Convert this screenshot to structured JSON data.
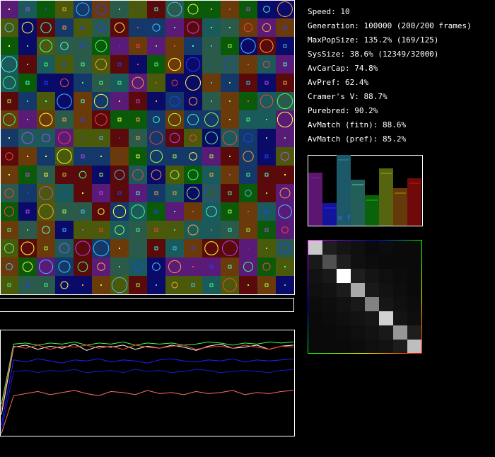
{
  "stats": [
    "Speed: 10",
    "Generation: 100000 (200/200 frames)",
    "MaxPopSize: 135.2% (169/125)",
    "SysSize: 38.6% (12349/32000)",
    "AvCarCap: 74.8%",
    "AvPref: 62.4%",
    "Cramer's V: 88.7%",
    "Purebred: 90.2%",
    "AvMatch (fitn): 88.6%",
    "AvMatch (pref): 85.2%"
  ],
  "bars": {
    "labels": [
      "m f"
    ],
    "values": [
      75,
      32,
      100,
      65,
      43,
      81,
      53,
      67
    ],
    "colors": [
      "#5c1670",
      "#14149a",
      "#1c5868",
      "#245e58",
      "#0a620a",
      "#566410",
      "#643a0a",
      "#700a0a"
    ],
    "tops": [
      "#7a2a90",
      "#2a2aff",
      "#2a90a0",
      "#50d0b0",
      "#10c010",
      "#90b010",
      "#d08010",
      "#d01010"
    ]
  },
  "matrix": [
    [
      200,
      30,
      20,
      15,
      10,
      12,
      10,
      10
    ],
    [
      25,
      80,
      30,
      15,
      12,
      10,
      10,
      10
    ],
    [
      18,
      25,
      255,
      30,
      20,
      15,
      12,
      10
    ],
    [
      15,
      18,
      28,
      170,
      25,
      18,
      14,
      10
    ],
    [
      12,
      14,
      18,
      25,
      130,
      22,
      16,
      12
    ],
    [
      10,
      12,
      15,
      18,
      22,
      210,
      20,
      14
    ],
    [
      10,
      10,
      12,
      15,
      18,
      25,
      150,
      30
    ],
    [
      10,
      10,
      10,
      12,
      15,
      18,
      28,
      190
    ]
  ],
  "history": [
    {
      "color": "#ffffff",
      "values": [
        0.2,
        0.84,
        0.86,
        0.82,
        0.85,
        0.83,
        0.87,
        0.81,
        0.85,
        0.84,
        0.86,
        0.82,
        0.85,
        0.83,
        0.86,
        0.84,
        0.81,
        0.85,
        0.87,
        0.83,
        0.84,
        0.86,
        0.82,
        0.85,
        0.86
      ]
    },
    {
      "color": "#40ff40",
      "values": [
        0.3,
        0.87,
        0.88,
        0.86,
        0.88,
        0.87,
        0.89,
        0.86,
        0.88,
        0.87,
        0.89,
        0.86,
        0.88,
        0.87,
        0.88,
        0.86,
        0.87,
        0.89,
        0.88,
        0.86,
        0.88,
        0.87,
        0.89,
        0.88,
        0.89
      ]
    },
    {
      "color": "#ff4040",
      "values": [
        0.25,
        0.85,
        0.83,
        0.86,
        0.82,
        0.85,
        0.84,
        0.86,
        0.83,
        0.85,
        0.82,
        0.86,
        0.84,
        0.83,
        0.85,
        0.86,
        0.82,
        0.84,
        0.85,
        0.83,
        0.86,
        0.84,
        0.82,
        0.85,
        0.84
      ]
    },
    {
      "color": "#2020ff",
      "values": [
        0.1,
        0.72,
        0.7,
        0.73,
        0.71,
        0.69,
        0.72,
        0.71,
        0.73,
        0.7,
        0.72,
        0.71,
        0.69,
        0.72,
        0.73,
        0.71,
        0.7,
        0.72,
        0.71,
        0.73,
        0.7,
        0.72,
        0.71,
        0.72,
        0.73
      ]
    },
    {
      "color": "#1818d0",
      "values": [
        0.05,
        0.61,
        0.62,
        0.6,
        0.62,
        0.61,
        0.63,
        0.6,
        0.61,
        0.62,
        0.6,
        0.63,
        0.61,
        0.62,
        0.6,
        0.61,
        0.63,
        0.62,
        0.6,
        0.61,
        0.62,
        0.61,
        0.6,
        0.62,
        0.63
      ]
    },
    {
      "color": "#ff7060",
      "values": [
        0.02,
        0.38,
        0.4,
        0.42,
        0.39,
        0.41,
        0.43,
        0.4,
        0.38,
        0.42,
        0.41,
        0.39,
        0.43,
        0.4,
        0.41,
        0.39,
        0.42,
        0.4,
        0.41,
        0.43,
        0.39,
        0.41,
        0.4,
        0.42,
        0.43
      ]
    }
  ]
}
